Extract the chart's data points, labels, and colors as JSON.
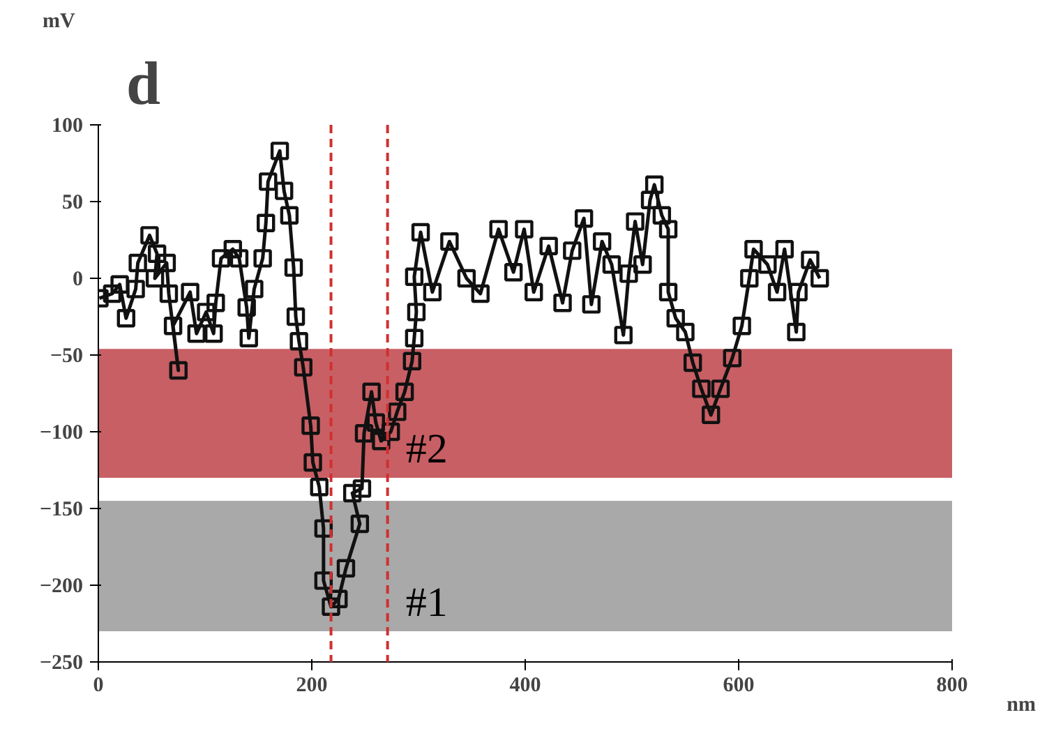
{
  "chart_data": {
    "type": "line",
    "title": "d",
    "xlabel": "nm",
    "ylabel": "mV",
    "xlim": [
      0,
      800
    ],
    "ylim": [
      -250,
      100
    ],
    "xticks": [
      0,
      200,
      400,
      600,
      800
    ],
    "yticks": [
      -250,
      -200,
      -150,
      -100,
      -50,
      0,
      50,
      100
    ],
    "grid": false,
    "marker": "square",
    "line_style": "solid",
    "series": [
      {
        "color": "#111111",
        "x": [
          1,
          13,
          20,
          26,
          35,
          37,
          48,
          55,
          53,
          64,
          66,
          75,
          70,
          86,
          92,
          101,
          108,
          110,
          115,
          126,
          132,
          139,
          141,
          146,
          154,
          157,
          159,
          170,
          174,
          179,
          183,
          185,
          188,
          192,
          199,
          201,
          207,
          211,
          211,
          218,
          225,
          232,
          245,
          238,
          247,
          249,
          256,
          260,
          265,
          274,
          280,
          287,
          294,
          296,
          298,
          296,
          302,
          313,
          329,
          345,
          358,
          375,
          389,
          399,
          408,
          422,
          435,
          444,
          455,
          462,
          472,
          481,
          492,
          497,
          503,
          510,
          517,
          521,
          528,
          534,
          534,
          541,
          550,
          557,
          565,
          574,
          583,
          594,
          603,
          610,
          614,
          627,
          636,
          643,
          654,
          656,
          667,
          676
        ],
        "values": [
          -13,
          -10,
          -4,
          -26,
          -7,
          10,
          28,
          16,
          0,
          10,
          -10,
          -60,
          -31,
          -9,
          -36,
          -22,
          -36,
          -16,
          13,
          19,
          13,
          -19,
          -39,
          -7,
          13,
          36,
          63,
          83,
          57,
          41,
          7,
          -25,
          -41,
          -58,
          -96,
          -120,
          -136,
          -163,
          -197,
          -214,
          -209,
          -189,
          -160,
          -140,
          -137,
          -101,
          -74,
          -94,
          -106,
          -100,
          -87,
          -74,
          -54,
          -39,
          -22,
          1,
          30,
          -9,
          24,
          0,
          -10,
          32,
          4,
          32,
          -9,
          21,
          -16,
          18,
          39,
          -17,
          24,
          9,
          -37,
          3,
          37,
          9,
          51,
          61,
          41,
          32,
          -9,
          -26,
          -35,
          -55,
          -72,
          -89,
          -72,
          -52,
          -31,
          0,
          19,
          9,
          -9,
          19,
          -35,
          -9,
          12,
          0
        ]
      }
    ],
    "ref_lines": [
      {
        "axis": "x",
        "value": 218,
        "label": null,
        "color": "#d03030",
        "line_style": "dashed"
      },
      {
        "axis": "x",
        "value": 271,
        "label": null,
        "color": "#d03030",
        "line_style": "dashed"
      }
    ],
    "bands": [
      {
        "axis": "y",
        "from": -130,
        "to": -46,
        "label": "#2",
        "color": "#b52a30"
      },
      {
        "axis": "y",
        "from": -230,
        "to": -145,
        "label": "#1",
        "color": "#8c8c8c"
      }
    ]
  }
}
